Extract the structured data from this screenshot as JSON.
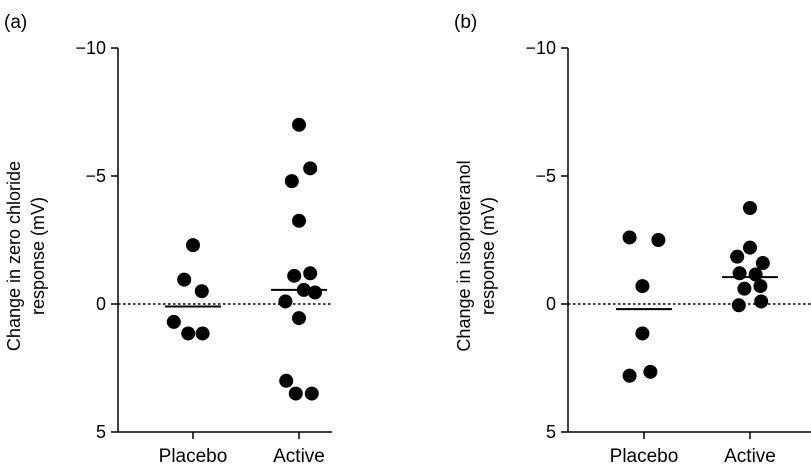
{
  "chart_data": [
    {
      "type": "scatter",
      "panel_label": "(a)",
      "ylabel_line1": "Change in zero chloride",
      "ylabel_line2": "response (mV)",
      "ylim": [
        5,
        -10
      ],
      "y_inverted": true,
      "yticks": [
        -10,
        -5,
        0,
        5
      ],
      "ytick_labels": [
        "−10",
        "−5",
        "0",
        "5"
      ],
      "categories": [
        "Placebo",
        "Active"
      ],
      "reference_line": 0,
      "series": [
        {
          "category": "Placebo",
          "mean": 0.1,
          "points": [
            {
              "offset": 0,
              "y": -2.3
            },
            {
              "offset": -0.55,
              "y": -0.95
            },
            {
              "offset": 0.55,
              "y": -0.5
            },
            {
              "offset": -1.2,
              "y": 0.7
            },
            {
              "offset": -0.3,
              "y": 1.15
            },
            {
              "offset": 0.6,
              "y": 1.15
            }
          ]
        },
        {
          "category": "Active",
          "mean": -0.55,
          "points": [
            {
              "offset": 0,
              "y": -7.0
            },
            {
              "offset": 0.7,
              "y": -5.3
            },
            {
              "offset": -0.45,
              "y": -4.8
            },
            {
              "offset": 0,
              "y": -3.25
            },
            {
              "offset": -0.3,
              "y": -1.1
            },
            {
              "offset": 0.7,
              "y": -1.2
            },
            {
              "offset": -0.85,
              "y": -0.1
            },
            {
              "offset": 0.3,
              "y": -0.55
            },
            {
              "offset": 1.0,
              "y": -0.45
            },
            {
              "offset": 0,
              "y": 0.55
            },
            {
              "offset": -0.8,
              "y": 3.0
            },
            {
              "offset": -0.2,
              "y": 3.5
            },
            {
              "offset": 0.8,
              "y": 3.5
            }
          ]
        }
      ]
    },
    {
      "type": "scatter",
      "panel_label": "(b)",
      "ylabel_line1": "Change in isoproteranol",
      "ylabel_line2": "response (mV)",
      "ylim": [
        5,
        -10
      ],
      "y_inverted": true,
      "yticks": [
        -10,
        -5,
        0,
        5
      ],
      "ytick_labels": [
        "−10",
        "−5",
        "0",
        "5"
      ],
      "categories": [
        "Placebo",
        "Active"
      ],
      "reference_line": 0,
      "series": [
        {
          "category": "Placebo",
          "mean": 0.2,
          "points": [
            {
              "offset": -0.9,
              "y": -2.6
            },
            {
              "offset": 0.9,
              "y": -2.5
            },
            {
              "offset": -0.1,
              "y": -0.7
            },
            {
              "offset": -0.1,
              "y": 1.15
            },
            {
              "offset": -0.9,
              "y": 2.8
            },
            {
              "offset": 0.4,
              "y": 2.65
            }
          ]
        },
        {
          "category": "Active",
          "mean": -1.05,
          "points": [
            {
              "offset": 0,
              "y": -3.75
            },
            {
              "offset": 0,
              "y": -2.2
            },
            {
              "offset": -0.8,
              "y": -1.85
            },
            {
              "offset": 0.8,
              "y": -1.6
            },
            {
              "offset": -0.65,
              "y": -1.2
            },
            {
              "offset": 0.35,
              "y": -1.15
            },
            {
              "offset": -0.35,
              "y": -0.6
            },
            {
              "offset": 0.65,
              "y": -0.7
            },
            {
              "offset": -0.7,
              "y": 0.05
            },
            {
              "offset": 0.7,
              "y": -0.1
            }
          ]
        }
      ]
    }
  ]
}
